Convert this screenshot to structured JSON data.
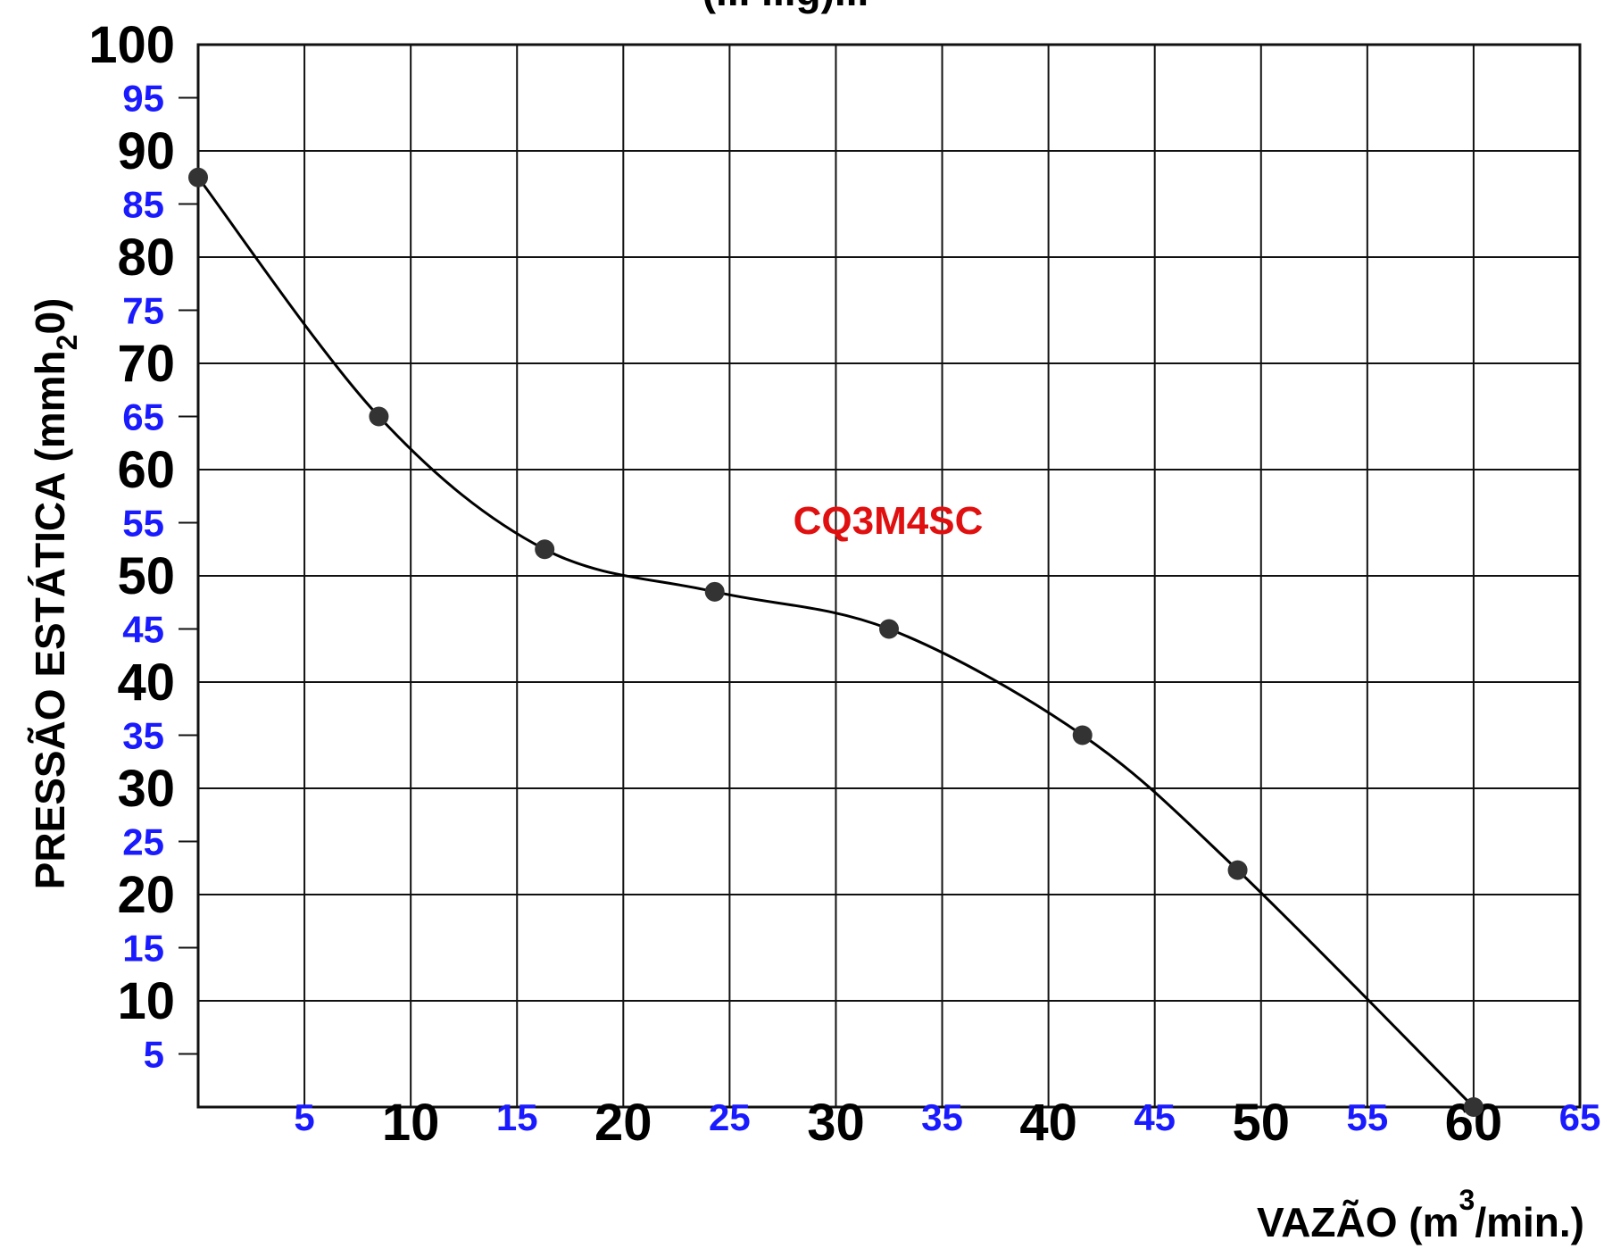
{
  "chart_data": {
    "type": "line",
    "title_fragment": "(... ...g)...",
    "xlabel": "VAZÃO (m",
    "xlabel_sup": "3",
    "xlabel_tail": "/min.)",
    "ylabel": "PRESSÃO ESTÁTICA (mmh",
    "ylabel_sub": "2",
    "ylabel_tail": "0)",
    "xlim": [
      0,
      65
    ],
    "ylim": [
      0,
      100
    ],
    "x_ticks_major": [
      "10",
      "20",
      "30",
      "40",
      "50",
      "60"
    ],
    "x_ticks_minor": [
      "5",
      "15",
      "25",
      "35",
      "45",
      "55",
      "65"
    ],
    "y_ticks_major": [
      "100",
      "90",
      "80",
      "70",
      "60",
      "50",
      "40",
      "30",
      "20",
      "10"
    ],
    "y_ticks_minor": [
      "95",
      "85",
      "75",
      "65",
      "55",
      "45",
      "35",
      "25",
      "15",
      "5"
    ],
    "grid": true,
    "series": [
      {
        "name": "CQ3M4SC",
        "x": [
          0,
          8.5,
          16.3,
          24.3,
          32.5,
          41.6,
          48.9,
          60
        ],
        "y": [
          87.5,
          65,
          52.5,
          48.5,
          45,
          35,
          22.3,
          0
        ]
      }
    ],
    "colors": {
      "line": "#000000",
      "marker": "#333333",
      "minor_tick": "#1a1aff",
      "annotation": "#e01010"
    }
  }
}
